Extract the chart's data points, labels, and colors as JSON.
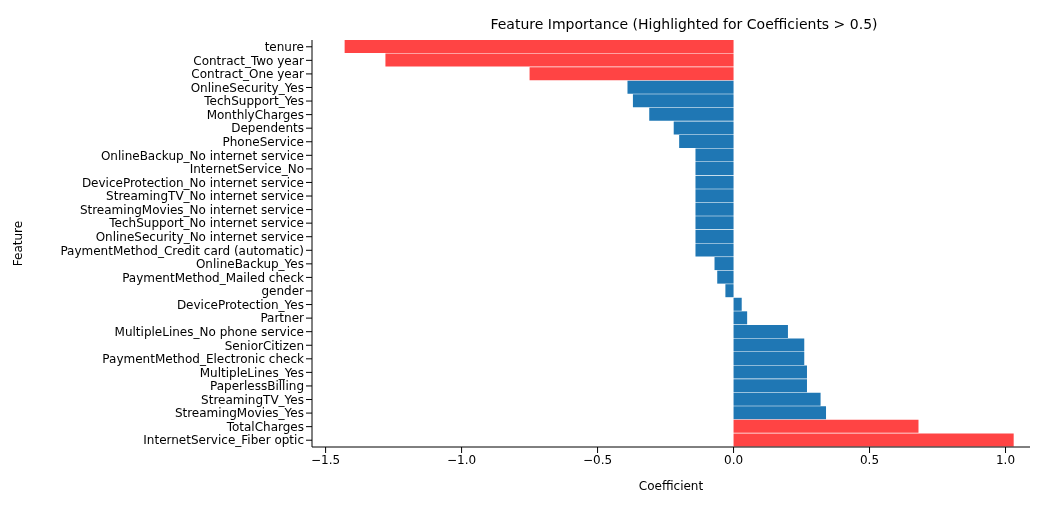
{
  "chart_data": {
    "type": "bar",
    "orientation": "horizontal",
    "title": "Feature Importance (Highlighted for Coefficients > 0.5)",
    "xlabel": "Coefficient",
    "ylabel": "Feature",
    "categories": [
      "tenure",
      "Contract_Two year",
      "Contract_One year",
      "OnlineSecurity_Yes",
      "TechSupport_Yes",
      "MonthlyCharges",
      "Dependents",
      "PhoneService",
      "OnlineBackup_No internet service",
      "InternetService_No",
      "DeviceProtection_No internet service",
      "StreamingTV_No internet service",
      "StreamingMovies_No internet service",
      "TechSupport_No internet service",
      "OnlineSecurity_No internet service",
      "PaymentMethod_Credit card (automatic)",
      "OnlineBackup_Yes",
      "PaymentMethod_Mailed check",
      "gender",
      "DeviceProtection_Yes",
      "Partner",
      "MultipleLines_No phone service",
      "SeniorCitizen",
      "PaymentMethod_Electronic check",
      "MultipleLines_Yes",
      "PaperlessBilling",
      "StreamingTV_Yes",
      "StreamingMovies_Yes",
      "TotalCharges",
      "InternetService_Fiber optic"
    ],
    "values": [
      -1.43,
      -1.28,
      -0.75,
      -0.39,
      -0.37,
      -0.31,
      -0.22,
      -0.2,
      -0.14,
      -0.14,
      -0.14,
      -0.14,
      -0.14,
      -0.14,
      -0.14,
      -0.14,
      -0.07,
      -0.06,
      -0.03,
      0.03,
      0.05,
      0.2,
      0.26,
      0.26,
      0.27,
      0.27,
      0.32,
      0.34,
      0.68,
      1.03
    ],
    "colors": [
      "#ff4444",
      "#ff4444",
      "#ff4444",
      "#1f77b4",
      "#1f77b4",
      "#1f77b4",
      "#1f77b4",
      "#1f77b4",
      "#1f77b4",
      "#1f77b4",
      "#1f77b4",
      "#1f77b4",
      "#1f77b4",
      "#1f77b4",
      "#1f77b4",
      "#1f77b4",
      "#1f77b4",
      "#1f77b4",
      "#1f77b4",
      "#1f77b4",
      "#1f77b4",
      "#1f77b4",
      "#1f77b4",
      "#1f77b4",
      "#1f77b4",
      "#1f77b4",
      "#1f77b4",
      "#1f77b4",
      "#ff4444",
      "#ff4444"
    ],
    "xlim": [
      -1.55,
      1.09
    ],
    "xticks": [
      {
        "value": -1.5,
        "label": "−1.5"
      },
      {
        "value": -1,
        "label": "−1.0"
      },
      {
        "value": -0.5,
        "label": "−0.5"
      },
      {
        "value": 0,
        "label": "0.0"
      },
      {
        "value": 0.5,
        "label": "0.5"
      },
      {
        "value": 1,
        "label": "1.0"
      }
    ],
    "grid": false,
    "legend": false
  }
}
